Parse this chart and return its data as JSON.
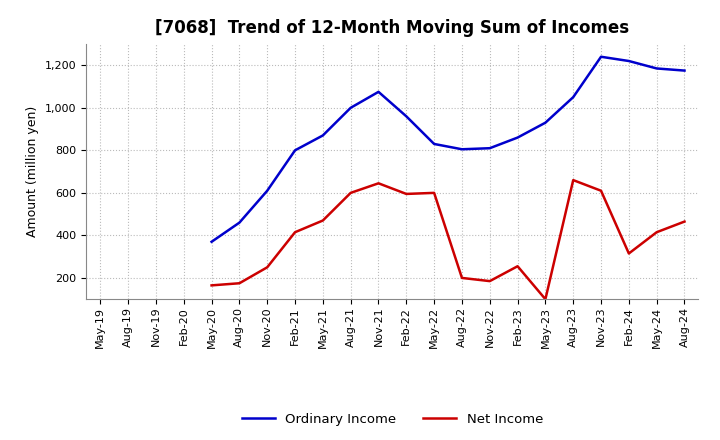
{
  "title": "[7068]  Trend of 12-Month Moving Sum of Incomes",
  "ylabel": "Amount (million yen)",
  "x_labels": [
    "May-19",
    "Aug-19",
    "Nov-19",
    "Feb-20",
    "May-20",
    "Aug-20",
    "Nov-20",
    "Feb-21",
    "May-21",
    "Aug-21",
    "Nov-21",
    "Feb-22",
    "May-22",
    "Aug-22",
    "Nov-22",
    "Feb-23",
    "May-23",
    "Aug-23",
    "Nov-23",
    "Feb-24",
    "May-24",
    "Aug-24"
  ],
  "ordinary_income": [
    null,
    null,
    null,
    null,
    370,
    460,
    610,
    800,
    870,
    1000,
    1075,
    960,
    830,
    805,
    810,
    860,
    930,
    1050,
    1240,
    1220,
    1185,
    1175
  ],
  "net_income": [
    null,
    null,
    null,
    null,
    165,
    175,
    250,
    415,
    470,
    600,
    645,
    595,
    600,
    200,
    185,
    255,
    100,
    660,
    610,
    315,
    415,
    465
  ],
  "ordinary_color": "#0000cc",
  "net_color": "#cc0000",
  "ylim_min": 100,
  "ylim_max": 1300,
  "yticks": [
    200,
    400,
    600,
    800,
    1000,
    1200
  ],
  "grid_color": "#bbbbbb",
  "background_color": "#ffffff",
  "title_fontsize": 12,
  "axis_fontsize": 9,
  "tick_fontsize": 8,
  "legend_fontsize": 9.5,
  "line_width": 1.8
}
